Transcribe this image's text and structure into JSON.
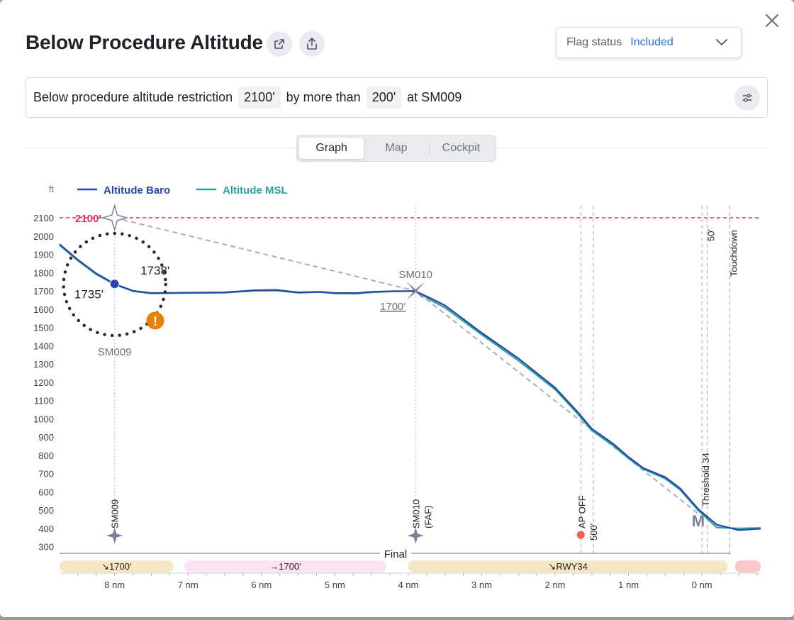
{
  "header": {
    "title": "Below Procedure Altitude",
    "open_icon": "external-link-icon",
    "share_icon": "share-icon",
    "close_icon": "close-icon"
  },
  "flag_status": {
    "label": "Flag status",
    "value": "Included"
  },
  "rule": {
    "prefix": "Below procedure altitude restriction",
    "altitude": "2100'",
    "middle": "by more than",
    "margin": "200'",
    "suffix": "at SM009"
  },
  "tabs": [
    {
      "label": "Graph",
      "active": true
    },
    {
      "label": "Map",
      "active": false
    },
    {
      "label": "Cockpit",
      "active": false
    }
  ],
  "chart_data": {
    "type": "line",
    "ylabel": "ft",
    "xlabel": "",
    "ylim": [
      300,
      2200
    ],
    "xlim": [
      8.75,
      -0.8
    ],
    "yticks": [
      2100,
      2000,
      1900,
      1800,
      1700,
      1600,
      1500,
      1400,
      1300,
      1200,
      1100,
      1000,
      900,
      800,
      700,
      600,
      500,
      400,
      300
    ],
    "xticks": [
      {
        "label": "8 nm",
        "value": 8
      },
      {
        "label": "7 nm",
        "value": 7
      },
      {
        "label": "6 nm",
        "value": 6
      },
      {
        "label": "5 nm",
        "value": 5
      },
      {
        "label": "4 nm",
        "value": 4
      },
      {
        "label": "3 nm",
        "value": 3
      },
      {
        "label": "2 nm",
        "value": 2
      },
      {
        "label": "1 nm",
        "value": 1
      },
      {
        "label": "0 nm",
        "value": 0
      }
    ],
    "legend_position": "top-left",
    "series": [
      {
        "name": "Altitude Baro",
        "color": "#2446a8",
        "points": [
          [
            8.75,
            1955
          ],
          [
            8.5,
            1870
          ],
          [
            8.25,
            1795
          ],
          [
            8.0,
            1738
          ],
          [
            7.75,
            1700
          ],
          [
            7.5,
            1688
          ],
          [
            7.0,
            1690
          ],
          [
            6.5,
            1692
          ],
          [
            6.1,
            1703
          ],
          [
            5.8,
            1705
          ],
          [
            5.5,
            1692
          ],
          [
            5.2,
            1695
          ],
          [
            5.0,
            1688
          ],
          [
            4.7,
            1688
          ],
          [
            4.5,
            1695
          ],
          [
            4.2,
            1698
          ],
          [
            3.9,
            1698
          ],
          [
            3.7,
            1660
          ],
          [
            3.5,
            1620
          ],
          [
            3.0,
            1470
          ],
          [
            2.5,
            1330
          ],
          [
            2.0,
            1170
          ],
          [
            1.7,
            1040
          ],
          [
            1.5,
            945
          ],
          [
            1.2,
            860
          ],
          [
            1.0,
            790
          ],
          [
            0.8,
            730
          ],
          [
            0.5,
            680
          ],
          [
            0.3,
            620
          ],
          [
            0.05,
            505
          ],
          [
            -0.2,
            420
          ],
          [
            -0.5,
            390
          ],
          [
            -0.8,
            398
          ]
        ]
      },
      {
        "name": "Altitude MSL",
        "color": "#29a39a",
        "points": [
          [
            8.75,
            1950
          ],
          [
            8.5,
            1865
          ],
          [
            8.25,
            1790
          ],
          [
            8.0,
            1735
          ],
          [
            7.75,
            1698
          ],
          [
            7.5,
            1686
          ],
          [
            7.0,
            1688
          ],
          [
            6.5,
            1690
          ],
          [
            6.1,
            1700
          ],
          [
            5.8,
            1701
          ],
          [
            5.5,
            1689
          ],
          [
            5.2,
            1693
          ],
          [
            5.0,
            1686
          ],
          [
            4.7,
            1685
          ],
          [
            4.5,
            1692
          ],
          [
            4.2,
            1697
          ],
          [
            3.9,
            1700
          ],
          [
            3.7,
            1650
          ],
          [
            3.5,
            1608
          ],
          [
            3.0,
            1460
          ],
          [
            2.5,
            1318
          ],
          [
            2.0,
            1160
          ],
          [
            1.7,
            1030
          ],
          [
            1.5,
            935
          ],
          [
            1.2,
            850
          ],
          [
            1.0,
            783
          ],
          [
            0.8,
            725
          ],
          [
            0.5,
            672
          ],
          [
            0.3,
            612
          ],
          [
            0.05,
            498
          ],
          [
            -0.2,
            405
          ],
          [
            -0.5,
            400
          ],
          [
            -0.8,
            402
          ]
        ]
      }
    ],
    "restriction": {
      "value": 2100,
      "label": "2100'",
      "color": "#e0335a"
    },
    "procedure_path": [
      [
        8.0,
        2100
      ],
      [
        3.9,
        1700
      ],
      [
        0.05,
        480
      ]
    ],
    "waypoints": [
      {
        "id": "SM009",
        "x": 8.0,
        "label": "SM009",
        "axis_label": "SM009"
      },
      {
        "id": "SM010",
        "x": 3.9,
        "label": "SM010",
        "axis_label": "SM010",
        "axis_sublabel": "(FAF)",
        "constraint": "1700'"
      }
    ],
    "annotations": [
      {
        "text": "1738'",
        "x": 7.45,
        "y": 1790
      },
      {
        "text": "1735'",
        "x": 8.35,
        "y": 1660
      }
    ],
    "markers": [
      {
        "label": "AP OFF",
        "x": 1.65,
        "color": "#f0624a"
      },
      {
        "label": "500'",
        "x": 1.48
      },
      {
        "label": "Threshold 34",
        "x": 0.0
      },
      {
        "label": "50'",
        "x": -0.07
      },
      {
        "label": "Touchdown",
        "x": -0.38
      }
    ],
    "missed_approach_symbol": "M",
    "phase_label": "Final",
    "segments": [
      {
        "label": "↘1700'",
        "from": 8.75,
        "to": 7.2,
        "color": "#f6e7c4"
      },
      {
        "label": "→1700'",
        "from": 7.05,
        "to": 4.3,
        "color": "#fbe3f5"
      },
      {
        "label": "↘RWY34",
        "from": 4.0,
        "to": -0.35,
        "color": "#f6e7c4"
      },
      {
        "label": "",
        "from": -0.45,
        "to": -0.8,
        "color": "#fbc8c8"
      }
    ]
  }
}
